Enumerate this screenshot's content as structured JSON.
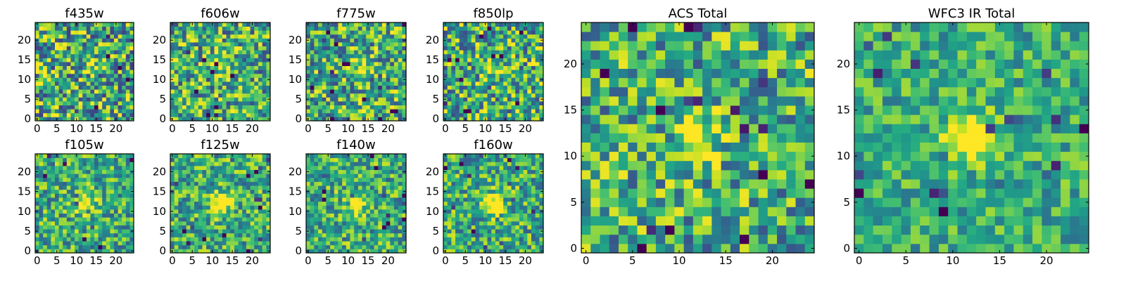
{
  "colormap": "viridis",
  "chart_data": [
    {
      "type": "heatmap",
      "title": "f435w",
      "seed": 435,
      "blob": 0.0,
      "noise": 0.55,
      "xticks": [
        "0",
        "5",
        "10",
        "15",
        "20"
      ],
      "yticks": [
        "0",
        "5",
        "10",
        "15",
        "20"
      ],
      "xlim": [
        0,
        24
      ],
      "ylim": [
        0,
        24
      ]
    },
    {
      "type": "heatmap",
      "title": "f606w",
      "seed": 606,
      "blob": 0.15,
      "noise": 0.5,
      "xticks": [
        "0",
        "5",
        "10",
        "15",
        "20"
      ],
      "yticks": [
        "0",
        "5",
        "10",
        "15",
        "20"
      ],
      "xlim": [
        0,
        24
      ],
      "ylim": [
        0,
        24
      ]
    },
    {
      "type": "heatmap",
      "title": "f775w",
      "seed": 775,
      "blob": 0.25,
      "noise": 0.5,
      "xticks": [
        "0",
        "5",
        "10",
        "15",
        "20"
      ],
      "yticks": [
        "0",
        "5",
        "10",
        "15",
        "20"
      ],
      "xlim": [
        0,
        24
      ],
      "ylim": [
        0,
        24
      ]
    },
    {
      "type": "heatmap",
      "title": "f850lp",
      "seed": 850,
      "blob": 0.25,
      "noise": 0.5,
      "xticks": [
        "0",
        "5",
        "10",
        "15",
        "20"
      ],
      "yticks": [
        "0",
        "5",
        "10",
        "15",
        "20"
      ],
      "xlim": [
        0,
        24
      ],
      "ylim": [
        0,
        24
      ]
    },
    {
      "type": "heatmap",
      "title": "f105w",
      "seed": 105,
      "blob": 0.55,
      "noise": 0.4,
      "xticks": [
        "0",
        "5",
        "10",
        "15",
        "20"
      ],
      "yticks": [
        "0",
        "5",
        "10",
        "15",
        "20"
      ],
      "xlim": [
        0,
        24
      ],
      "ylim": [
        0,
        24
      ]
    },
    {
      "type": "heatmap",
      "title": "f125w",
      "seed": 125,
      "blob": 0.6,
      "noise": 0.4,
      "xticks": [
        "0",
        "5",
        "10",
        "15",
        "20"
      ],
      "yticks": [
        "0",
        "5",
        "10",
        "15",
        "20"
      ],
      "xlim": [
        0,
        24
      ],
      "ylim": [
        0,
        24
      ]
    },
    {
      "type": "heatmap",
      "title": "f140w",
      "seed": 140,
      "blob": 0.6,
      "noise": 0.4,
      "xticks": [
        "0",
        "5",
        "10",
        "15",
        "20"
      ],
      "yticks": [
        "0",
        "5",
        "10",
        "15",
        "20"
      ],
      "xlim": [
        0,
        24
      ],
      "ylim": [
        0,
        24
      ]
    },
    {
      "type": "heatmap",
      "title": "f160w",
      "seed": 160,
      "blob": 0.6,
      "noise": 0.4,
      "xticks": [
        "0",
        "5",
        "10",
        "15",
        "20"
      ],
      "yticks": [
        "0",
        "5",
        "10",
        "15",
        "20"
      ],
      "xlim": [
        0,
        24
      ],
      "ylim": [
        0,
        24
      ]
    },
    {
      "type": "heatmap",
      "title": "ACS Total",
      "seed": 999,
      "blob": 0.45,
      "noise": 0.45,
      "xticks": [
        "0",
        "5",
        "10",
        "15",
        "20"
      ],
      "yticks": [
        "0",
        "5",
        "10",
        "15",
        "20"
      ],
      "xlim": [
        0,
        24
      ],
      "ylim": [
        0,
        24
      ]
    },
    {
      "type": "heatmap",
      "title": "WFC3 IR Total",
      "seed": 314,
      "blob": 0.65,
      "noise": 0.3,
      "xticks": [
        "0",
        "5",
        "10",
        "15",
        "20"
      ],
      "yticks": [
        "0",
        "5",
        "10",
        "15",
        "20"
      ],
      "xlim": [
        0,
        24
      ],
      "ylim": [
        0,
        24
      ]
    }
  ]
}
